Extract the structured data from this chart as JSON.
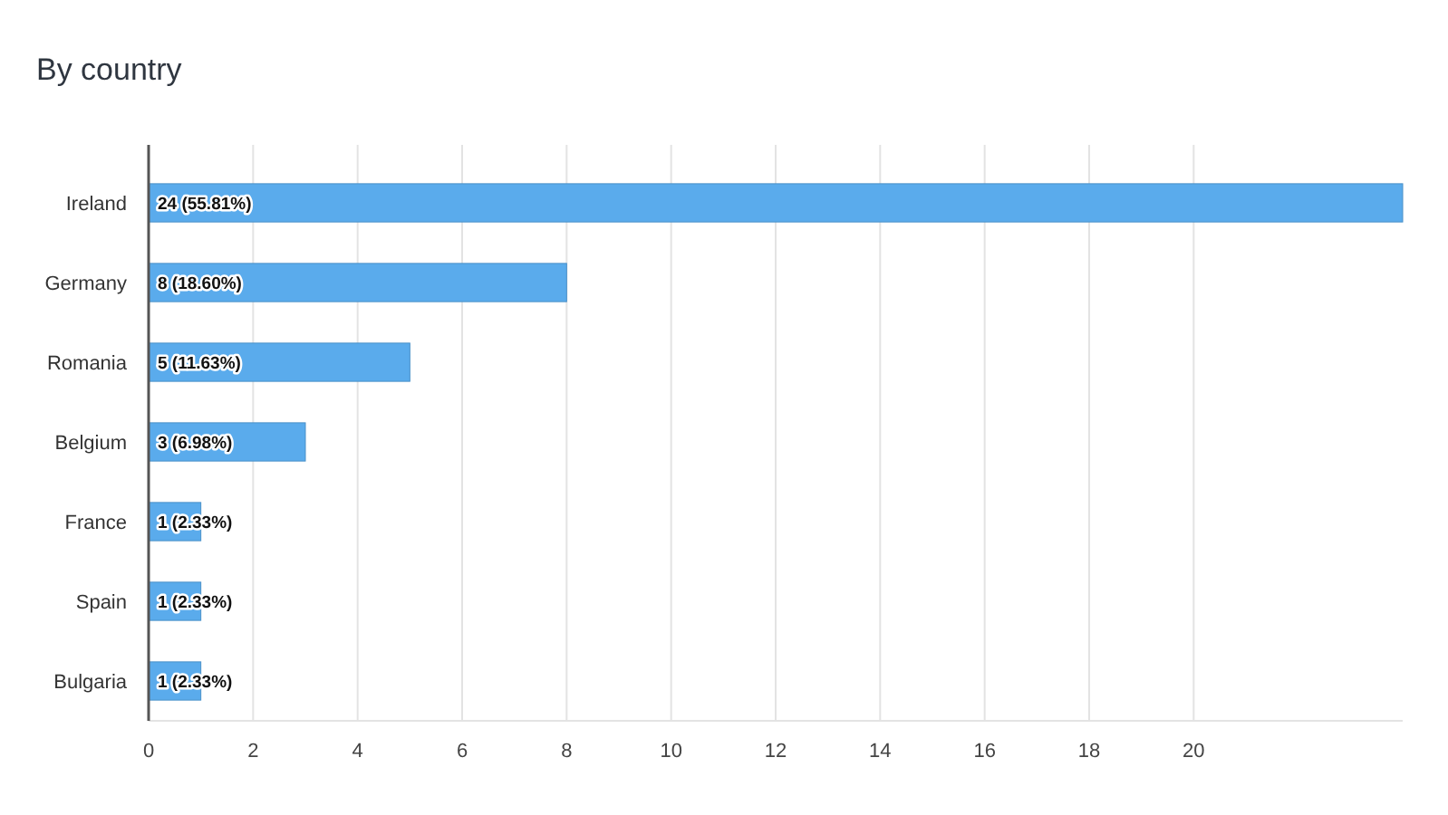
{
  "chart_data": {
    "type": "bar",
    "title": "By country",
    "orientation": "horizontal",
    "categories": [
      "Ireland",
      "Germany",
      "Romania",
      "Belgium",
      "France",
      "Spain",
      "Bulgaria"
    ],
    "values": [
      24,
      8,
      5,
      3,
      1,
      1,
      1
    ],
    "value_labels": [
      "24 (55.81%)",
      "8 (18.60%)",
      "5 (11.63%)",
      "3 (6.98%)",
      "1 (2.33%)",
      "1 (2.33%)",
      "1 (2.33%)"
    ],
    "color": "#5aabec",
    "xlim": [
      0,
      24
    ],
    "xticks": [
      0,
      2,
      4,
      6,
      8,
      10,
      12,
      14,
      16,
      18,
      20
    ],
    "grid": "x"
  }
}
